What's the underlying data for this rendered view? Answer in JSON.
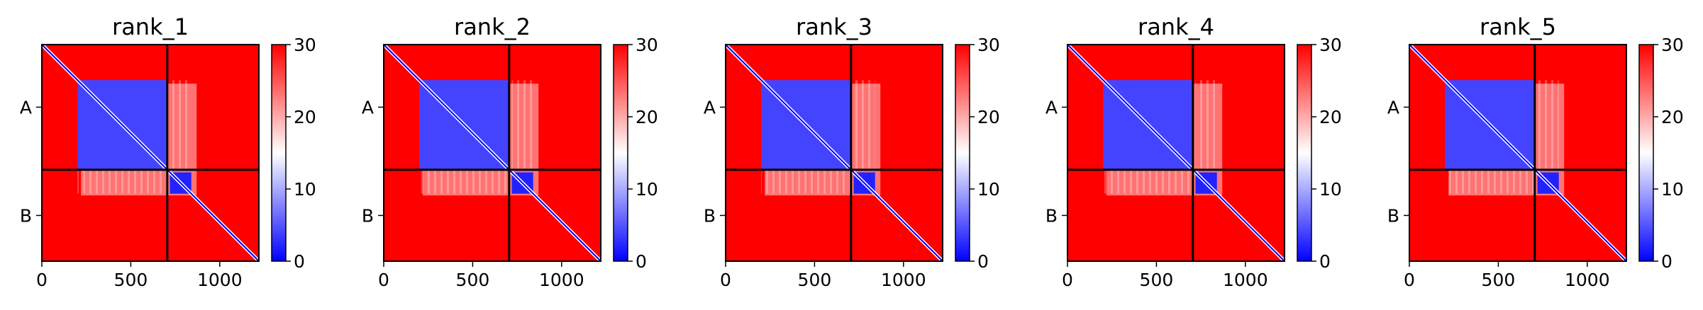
{
  "chart_data": {
    "type": "heatmap",
    "colormap": {
      "name": "bwr",
      "low": "#0000ff",
      "mid": "#ffffff",
      "high": "#ff0000"
    },
    "xlim": [
      0,
      1220
    ],
    "chain_boundary": 705,
    "xticks": [
      0,
      500,
      1000
    ],
    "chains": [
      {
        "label": "A",
        "start": 0,
        "end": 705
      },
      {
        "label": "B",
        "start": 705,
        "end": 1220
      }
    ],
    "colorbar": {
      "range": [
        0,
        30
      ],
      "ticks": [
        0,
        10,
        20,
        30
      ]
    },
    "domains": [
      {
        "start": 200,
        "end": 700,
        "value": 4
      },
      {
        "start": 720,
        "end": 840,
        "value": 2
      }
    ],
    "background_value": 30,
    "panels": [
      {
        "title": "rank_1"
      },
      {
        "title": "rank_2"
      },
      {
        "title": "rank_3"
      },
      {
        "title": "rank_4"
      },
      {
        "title": "rank_5"
      }
    ]
  }
}
